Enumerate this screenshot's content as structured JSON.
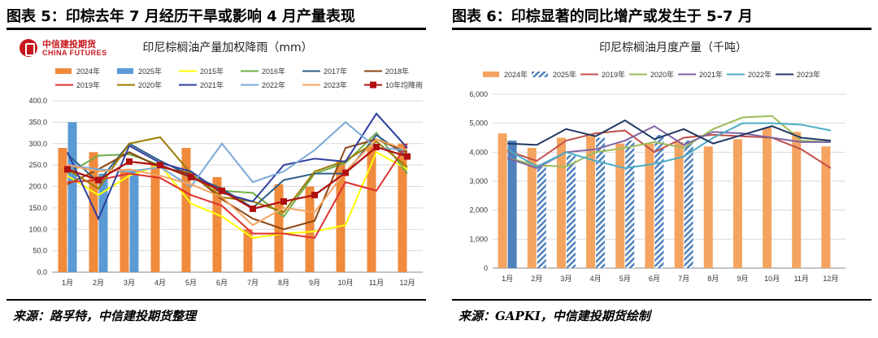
{
  "left": {
    "figure_title": "图表 5：印棕去年 7 月经历干旱或影响 4 月产量表现",
    "source": "来源：路孚特，中信建投期货整理",
    "logo": {
      "cn": "中信建投期货",
      "en": "CHINA FUTURES"
    },
    "colors": {
      "2024年": "#f08a3c",
      "2025年": "#5b9bd5",
      "2015年": "#ffff00",
      "2016年": "#70ad47",
      "2017年": "#2e5f8a",
      "2018年": "#8b4513",
      "2019年": "#e03030",
      "2020年": "#9c7a00",
      "2021年": "#2f3f9f",
      "2022年": "#79a9d9",
      "2023年": "#f4a460",
      "10年均降雨": "#b01010"
    }
  },
  "right": {
    "figure_title": "图表 6：印棕显著的同比增产或发生于 5-7 月",
    "source": "来源：GAPKI，中信建投期货绘制",
    "colors": {
      "2024年": "#f4a460",
      "2025年": "#4f81bd",
      "2019年": "#c0504d",
      "2020年": "#9bbb59",
      "2021年": "#8064a2",
      "2022年": "#4bacc6",
      "2023年": "#1f3864"
    }
  },
  "chart_data": [
    {
      "type": "bar",
      "title": "印尼棕榈油产量加权降雨（mm）",
      "categories": [
        "1月",
        "2月",
        "3月",
        "4月",
        "5月",
        "6月",
        "7月",
        "8月",
        "9月",
        "10月",
        "11月",
        "12月"
      ],
      "ylim": [
        0,
        400
      ],
      "yticks": [
        "0.0",
        "50.0",
        "100.0",
        "150.0",
        "200.0",
        "250.0",
        "300.0",
        "350.0",
        "400.0"
      ],
      "grid": true,
      "legend_position": "top",
      "legend": [
        "2024年",
        "2025年",
        "2015年",
        "2016年",
        "2017年",
        "2018年",
        "2019年",
        "2020年",
        "2021年",
        "2022年",
        "2023年",
        "10年均降雨"
      ],
      "bar_series": [
        {
          "name": "2024年",
          "values": [
            290,
            280,
            235,
            255,
            290,
            222,
            100,
            205,
            200,
            260,
            295,
            300
          ]
        },
        {
          "name": "2025年",
          "values": [
            350,
            230,
            240
          ]
        }
      ],
      "line_series": [
        {
          "name": "2015年",
          "values": [
            225,
            180,
            225,
            250,
            160,
            130,
            80,
            90,
            95,
            110,
            280,
            240
          ]
        },
        {
          "name": "2016年",
          "values": [
            230,
            272,
            275,
            250,
            220,
            190,
            185,
            130,
            230,
            255,
            325,
            230
          ]
        },
        {
          "name": "2017年",
          "values": [
            275,
            210,
            300,
            260,
            225,
            195,
            150,
            215,
            230,
            230,
            320,
            270
          ]
        },
        {
          "name": "2018年",
          "values": [
            205,
            240,
            280,
            245,
            230,
            170,
            125,
            100,
            120,
            290,
            310,
            280
          ]
        },
        {
          "name": "2019年",
          "values": [
            210,
            215,
            230,
            220,
            180,
            155,
            90,
            90,
            80,
            210,
            190,
            300
          ]
        },
        {
          "name": "2020年",
          "values": [
            240,
            195,
            300,
            315,
            230,
            175,
            165,
            140,
            235,
            260,
            305,
            245
          ]
        },
        {
          "name": "2021年",
          "values": [
            280,
            125,
            295,
            255,
            235,
            185,
            165,
            250,
            265,
            258,
            370,
            290
          ]
        },
        {
          "name": "2022年",
          "values": [
            250,
            240,
            235,
            245,
            200,
            300,
            210,
            235,
            285,
            350,
            290,
            285
          ]
        },
        {
          "name": "2023年",
          "values": [
            250,
            235,
            240,
            225,
            205,
            175,
            110,
            150,
            140,
            235,
            310,
            285
          ]
        },
        {
          "name": "10年均降雨",
          "values": [
            240,
            215,
            258,
            250,
            222,
            190,
            148,
            165,
            180,
            232,
            292,
            270
          ]
        }
      ]
    },
    {
      "type": "bar",
      "title": "印尼棕榈油月度产量（千吨）",
      "categories": [
        "1月",
        "2月",
        "3月",
        "4月",
        "5月",
        "6月",
        "7月",
        "8月",
        "9月",
        "10月",
        "11月",
        "12月"
      ],
      "ylim": [
        0,
        6000
      ],
      "yticks": [
        "0",
        "1,000",
        "2,000",
        "3,000",
        "4,000",
        "5,000",
        "6,000"
      ],
      "grid": true,
      "legend_position": "top",
      "legend": [
        "2024年",
        "2025年",
        "2019年",
        "2020年",
        "2021年",
        "2022年",
        "2023年"
      ],
      "bar_series": [
        {
          "name": "2024年",
          "values": [
            4650,
            4150,
            4500,
            4550,
            4300,
            4300,
            4350,
            4200,
            4450,
            4850,
            4700,
            4200
          ]
        },
        {
          "name": "2025年",
          "values": [
            4400,
            3500,
            3900,
            4500,
            4400,
            4600,
            4400
          ]
        }
      ],
      "line_series": [
        {
          "name": "2019年",
          "values": [
            4050,
            3700,
            4400,
            4650,
            4750,
            4000,
            4500,
            4600,
            4550,
            4500,
            4100,
            3450
          ]
        },
        {
          "name": "2020年",
          "values": [
            3800,
            3550,
            3500,
            4000,
            4150,
            4350,
            4150,
            4800,
            5200,
            5250,
            4400,
            4350
          ]
        },
        {
          "name": "2021年",
          "values": [
            3800,
            3450,
            4000,
            4100,
            4400,
            4900,
            4250,
            4700,
            4650,
            4500,
            4350,
            4350
          ]
        },
        {
          "name": "2022年",
          "values": [
            4100,
            3500,
            4000,
            3700,
            3450,
            3600,
            3850,
            4500,
            5000,
            5000,
            4950,
            4750
          ]
        },
        {
          "name": "2023年",
          "values": [
            4300,
            4250,
            4800,
            4550,
            5100,
            4450,
            4800,
            4300,
            4600,
            4900,
            4500,
            4400
          ]
        }
      ]
    }
  ]
}
